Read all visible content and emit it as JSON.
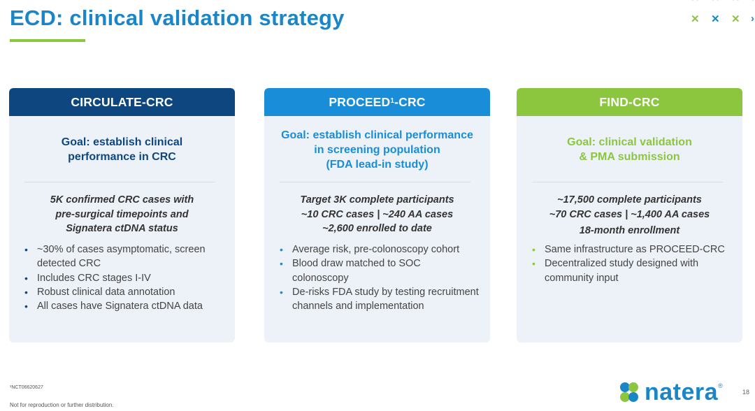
{
  "slide": {
    "title": "ECD: clinical validation strategy",
    "footnote": "¹NCT06620627",
    "disclaimer": "Not for reproduction or further distribution.",
    "page_number": "18",
    "logo_text": "natera",
    "logo_mark": "®"
  },
  "colors": {
    "title": "#1a86c8",
    "accent_green": "#8cc63f",
    "navy": "#0e4780",
    "blue": "#1a8dd8",
    "card_bg": "#edf2f8"
  },
  "cards": [
    {
      "header": "CIRCULATE-CRC",
      "goal": [
        "Goal: establish clinical",
        "performance in CRC"
      ],
      "summary": [
        "5K confirmed CRC cases with",
        "pre-surgical timepoints and",
        "Signatera ctDNA status"
      ],
      "bullets": [
        "~30% of cases asymptomatic, screen detected CRC",
        "Includes CRC stages I-IV",
        "Robust clinical data annotation",
        "All cases have Signatera ctDNA data"
      ]
    },
    {
      "header_pre": "PROCEED",
      "header_sup": "1",
      "header_post": "-CRC",
      "goal": [
        "Goal: establish clinical performance",
        "in screening population",
        "(FDA lead-in study)"
      ],
      "summary": [
        "Target 3K complete participants",
        "~10 CRC cases | ~240 AA cases",
        "~2,600 enrolled to date"
      ],
      "bullets": [
        "Average risk, pre-colonoscopy cohort",
        "Blood draw matched to SOC colonoscopy",
        "De-risks FDA study by testing recruitment channels and implementation"
      ]
    },
    {
      "header": "FIND-CRC",
      "goal": [
        "Goal: clinical validation",
        "& PMA submission"
      ],
      "summary": [
        "~17,500 complete participants",
        "~70 CRC cases | ~1,400 AA cases",
        "18-month enrollment"
      ],
      "bullets": [
        "Same infrastructure as PROCEED-CRC",
        "Decentralized study designed with community input"
      ]
    }
  ]
}
